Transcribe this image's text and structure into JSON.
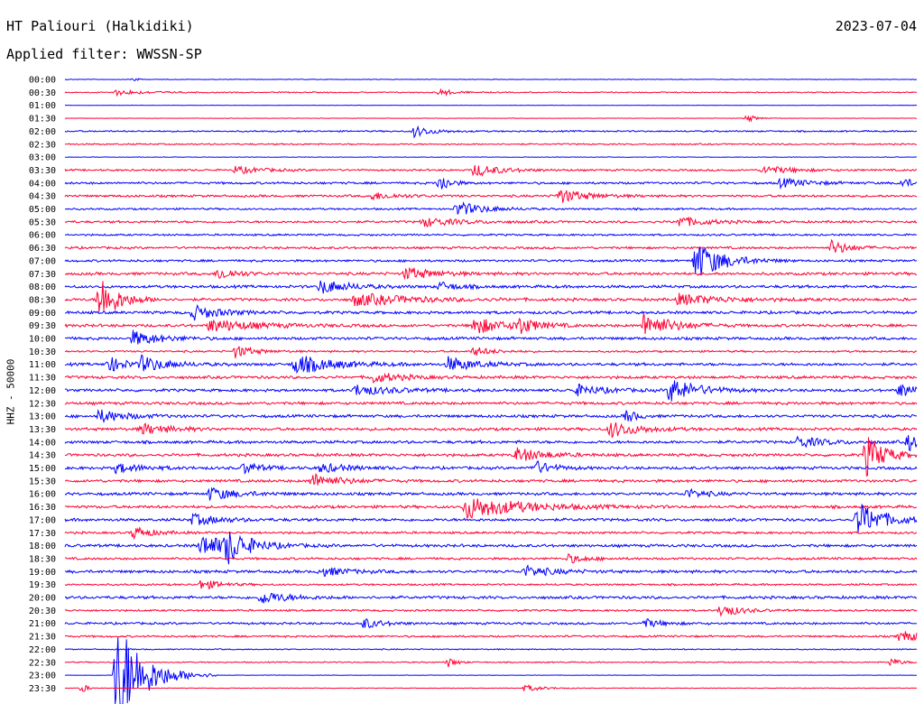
{
  "header": {
    "station": "HT Paliouri (Halkidiki)",
    "date": "2023-07-04",
    "filter": "Applied filter: WWSSN-SP",
    "channel_label": "HHZ - 50000"
  },
  "colors": {
    "even_trace": "#0000ff",
    "odd_trace": "#ff0033",
    "text": "#000000",
    "background": "#ffffff"
  },
  "chart_data": {
    "type": "line",
    "title": "HT Paliouri (Halkidiki)",
    "subtitle": "Applied filter: WWSSN-SP",
    "ylabel": "HHZ - 50000",
    "grid": false,
    "rows": [
      "00:00",
      "00:30",
      "01:00",
      "01:30",
      "02:00",
      "02:30",
      "03:00",
      "03:30",
      "04:00",
      "04:30",
      "05:00",
      "05:30",
      "06:00",
      "06:30",
      "07:00",
      "07:30",
      "08:00",
      "08:30",
      "09:00",
      "09:30",
      "10:00",
      "10:30",
      "11:00",
      "11:30",
      "12:00",
      "12:30",
      "13:00",
      "13:30",
      "14:00",
      "14:30",
      "15:00",
      "15:30",
      "16:00",
      "16:30",
      "17:00",
      "17:30",
      "18:00",
      "18:30",
      "19:00",
      "19:30",
      "20:00",
      "20:30",
      "21:00",
      "21:30",
      "22:00",
      "22:30",
      "23:00",
      "23:30"
    ],
    "row_noise_level": [
      0.3,
      0.6,
      0.2,
      0.2,
      0.8,
      0.8,
      0.3,
      1,
      1.2,
      1.2,
      1,
      1.2,
      1,
      1.2,
      1.2,
      1.5,
      1.5,
      1.5,
      1.5,
      1.5,
      1.5,
      1,
      1.5,
      1.5,
      1.5,
      1.5,
      1.5,
      1.5,
      1.5,
      1.5,
      1.5,
      1.5,
      1.5,
      1.5,
      1.5,
      1.2,
      1.5,
      1.2,
      1.5,
      1,
      1.5,
      1,
      1.2,
      1,
      0.6,
      0.6,
      0.2,
      0.3
    ],
    "events": [
      {
        "row": "00:00",
        "t": 0.08,
        "amp": 3,
        "dur": 0.005
      },
      {
        "row": "00:30",
        "t": 0.06,
        "amp": 3,
        "dur": 0.03
      },
      {
        "row": "00:30",
        "t": 0.44,
        "amp": 4,
        "dur": 0.015
      },
      {
        "row": "01:30",
        "t": 0.8,
        "amp": 5,
        "dur": 0.01
      },
      {
        "row": "02:00",
        "t": 0.41,
        "amp": 6,
        "dur": 0.02
      },
      {
        "row": "03:30",
        "t": 0.2,
        "amp": 4,
        "dur": 0.03
      },
      {
        "row": "03:30",
        "t": 0.48,
        "amp": 7,
        "dur": 0.03
      },
      {
        "row": "03:30",
        "t": 0.82,
        "amp": 5,
        "dur": 0.03
      },
      {
        "row": "04:00",
        "t": 0.44,
        "amp": 12,
        "dur": 0.01
      },
      {
        "row": "04:00",
        "t": 0.84,
        "amp": 5,
        "dur": 0.03
      },
      {
        "row": "04:00",
        "t": 0.98,
        "amp": 5,
        "dur": 0.02
      },
      {
        "row": "04:30",
        "t": 0.36,
        "amp": 4,
        "dur": 0.03
      },
      {
        "row": "04:30",
        "t": 0.58,
        "amp": 8,
        "dur": 0.03
      },
      {
        "row": "05:00",
        "t": 0.46,
        "amp": 8,
        "dur": 0.03
      },
      {
        "row": "05:30",
        "t": 0.42,
        "amp": 5,
        "dur": 0.04
      },
      {
        "row": "05:30",
        "t": 0.72,
        "amp": 6,
        "dur": 0.03
      },
      {
        "row": "06:30",
        "t": 0.9,
        "amp": 8,
        "dur": 0.02
      },
      {
        "row": "07:00",
        "t": 0.74,
        "amp": 22,
        "dur": 0.03
      },
      {
        "row": "07:30",
        "t": 0.18,
        "amp": 7,
        "dur": 0.02
      },
      {
        "row": "07:30",
        "t": 0.4,
        "amp": 7,
        "dur": 0.03
      },
      {
        "row": "08:00",
        "t": 0.3,
        "amp": 8,
        "dur": 0.03
      },
      {
        "row": "08:00",
        "t": 0.44,
        "amp": 5,
        "dur": 0.02
      },
      {
        "row": "08:30",
        "t": 0.04,
        "amp": 28,
        "dur": 0.02
      },
      {
        "row": "08:30",
        "t": 0.34,
        "amp": 7,
        "dur": 0.06
      },
      {
        "row": "08:30",
        "t": 0.72,
        "amp": 6,
        "dur": 0.05
      },
      {
        "row": "09:00",
        "t": 0.15,
        "amp": 8,
        "dur": 0.03
      },
      {
        "row": "09:30",
        "t": 0.17,
        "amp": 7,
        "dur": 0.05
      },
      {
        "row": "09:30",
        "t": 0.48,
        "amp": 10,
        "dur": 0.03
      },
      {
        "row": "09:30",
        "t": 0.53,
        "amp": 10,
        "dur": 0.02
      },
      {
        "row": "09:30",
        "t": 0.68,
        "amp": 14,
        "dur": 0.03
      },
      {
        "row": "10:00",
        "t": 0.08,
        "amp": 8,
        "dur": 0.03
      },
      {
        "row": "10:30",
        "t": 0.2,
        "amp": 7,
        "dur": 0.02
      },
      {
        "row": "10:30",
        "t": 0.48,
        "amp": 5,
        "dur": 0.02
      },
      {
        "row": "11:00",
        "t": 0.05,
        "amp": 9,
        "dur": 0.02
      },
      {
        "row": "11:00",
        "t": 0.09,
        "amp": 8,
        "dur": 0.03
      },
      {
        "row": "11:00",
        "t": 0.27,
        "amp": 11,
        "dur": 0.04
      },
      {
        "row": "11:00",
        "t": 0.45,
        "amp": 8,
        "dur": 0.03
      },
      {
        "row": "11:30",
        "t": 0.36,
        "amp": 6,
        "dur": 0.03
      },
      {
        "row": "12:00",
        "t": 0.34,
        "amp": 6,
        "dur": 0.04
      },
      {
        "row": "12:00",
        "t": 0.6,
        "amp": 6,
        "dur": 0.03
      },
      {
        "row": "12:00",
        "t": 0.71,
        "amp": 14,
        "dur": 0.03
      },
      {
        "row": "12:00",
        "t": 0.98,
        "amp": 8,
        "dur": 0.02
      },
      {
        "row": "13:00",
        "t": 0.04,
        "amp": 7,
        "dur": 0.03
      },
      {
        "row": "13:00",
        "t": 0.66,
        "amp": 8,
        "dur": 0.01
      },
      {
        "row": "13:30",
        "t": 0.09,
        "amp": 6,
        "dur": 0.03
      },
      {
        "row": "13:30",
        "t": 0.64,
        "amp": 9,
        "dur": 0.03
      },
      {
        "row": "14:00",
        "t": 0.86,
        "amp": 6,
        "dur": 0.03
      },
      {
        "row": "14:00",
        "t": 0.99,
        "amp": 9,
        "dur": 0.02
      },
      {
        "row": "14:30",
        "t": 0.53,
        "amp": 8,
        "dur": 0.03
      },
      {
        "row": "14:30",
        "t": 0.94,
        "amp": 24,
        "dur": 0.02
      },
      {
        "row": "15:00",
        "t": 0.06,
        "amp": 5,
        "dur": 0.03
      },
      {
        "row": "15:00",
        "t": 0.21,
        "amp": 6,
        "dur": 0.02
      },
      {
        "row": "15:00",
        "t": 0.3,
        "amp": 5,
        "dur": 0.03
      },
      {
        "row": "15:00",
        "t": 0.55,
        "amp": 8,
        "dur": 0.02
      },
      {
        "row": "15:30",
        "t": 0.29,
        "amp": 8,
        "dur": 0.03
      },
      {
        "row": "16:00",
        "t": 0.17,
        "amp": 7,
        "dur": 0.03
      },
      {
        "row": "16:00",
        "t": 0.73,
        "amp": 5,
        "dur": 0.02
      },
      {
        "row": "16:30",
        "t": 0.47,
        "amp": 13,
        "dur": 0.06
      },
      {
        "row": "17:00",
        "t": 0.15,
        "amp": 6,
        "dur": 0.03
      },
      {
        "row": "17:00",
        "t": 0.93,
        "amp": 19,
        "dur": 0.03
      },
      {
        "row": "17:30",
        "t": 0.08,
        "amp": 7,
        "dur": 0.02
      },
      {
        "row": "18:00",
        "t": 0.16,
        "amp": 12,
        "dur": 0.04
      },
      {
        "row": "18:00",
        "t": 0.19,
        "amp": 17,
        "dur": 0.02
      },
      {
        "row": "18:30",
        "t": 0.59,
        "amp": 5,
        "dur": 0.02
      },
      {
        "row": "19:00",
        "t": 0.3,
        "amp": 5,
        "dur": 0.03
      },
      {
        "row": "19:00",
        "t": 0.54,
        "amp": 6,
        "dur": 0.03
      },
      {
        "row": "19:30",
        "t": 0.16,
        "amp": 6,
        "dur": 0.02
      },
      {
        "row": "20:00",
        "t": 0.23,
        "amp": 7,
        "dur": 0.03
      },
      {
        "row": "20:30",
        "t": 0.77,
        "amp": 8,
        "dur": 0.02
      },
      {
        "row": "21:00",
        "t": 0.35,
        "amp": 6,
        "dur": 0.02
      },
      {
        "row": "21:00",
        "t": 0.68,
        "amp": 5,
        "dur": 0.02
      },
      {
        "row": "21:30",
        "t": 0.98,
        "amp": 6,
        "dur": 0.03
      },
      {
        "row": "22:30",
        "t": 0.45,
        "amp": 5,
        "dur": 0.01
      },
      {
        "row": "22:30",
        "t": 0.97,
        "amp": 5,
        "dur": 0.01
      },
      {
        "row": "23:00",
        "t": 0.06,
        "amp": 65,
        "dur": 0.03
      },
      {
        "row": "23:30",
        "t": 0.02,
        "amp": 7,
        "dur": 0.005
      },
      {
        "row": "23:30",
        "t": 0.54,
        "amp": 4,
        "dur": 0.02
      }
    ]
  }
}
